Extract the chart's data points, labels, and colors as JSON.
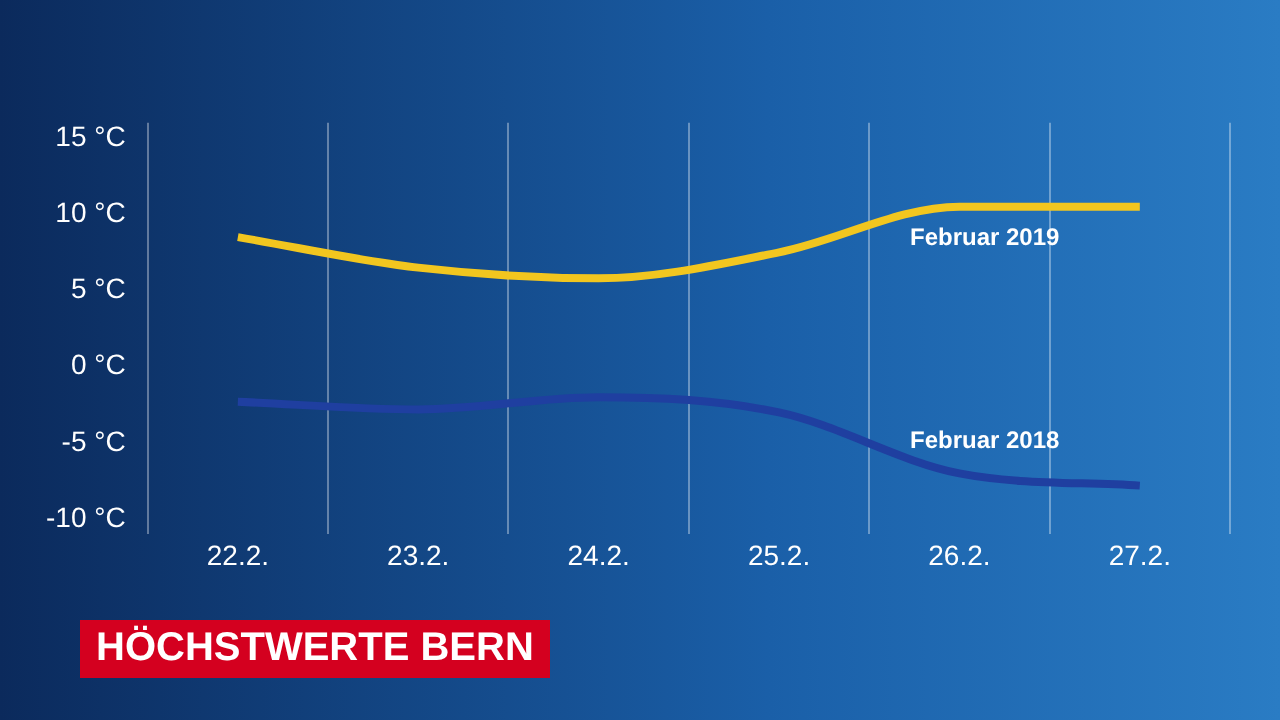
{
  "chart_data": {
    "type": "line",
    "title": "HÖCHSTWERTE BERN",
    "categories": [
      "22.2.",
      "23.2.",
      "24.2.",
      "25.2.",
      "26.2.",
      "27.2."
    ],
    "series": [
      {
        "name": "Februar 2019",
        "color": "#f2c61f",
        "values": [
          8.5,
          6.5,
          5.8,
          7.5,
          10.5,
          10.5
        ]
      },
      {
        "name": "Februar 2018",
        "color": "#1f3fa0",
        "values": [
          -2.3,
          -2.8,
          -2,
          -3,
          -7,
          -7.8
        ]
      }
    ],
    "ylim": [
      -11,
      16
    ],
    "yticks": [
      {
        "value": -10,
        "label": "-10 °C"
      },
      {
        "value": -5,
        "label": "-5 °C"
      },
      {
        "value": 0,
        "label": "0 °C"
      },
      {
        "value": 5,
        "label": "5 °C"
      },
      {
        "value": 10,
        "label": "10 °C"
      },
      {
        "value": 15,
        "label": "15 °C"
      }
    ],
    "grid": "x",
    "legend": false,
    "marker": "none",
    "line_style": "solid"
  }
}
